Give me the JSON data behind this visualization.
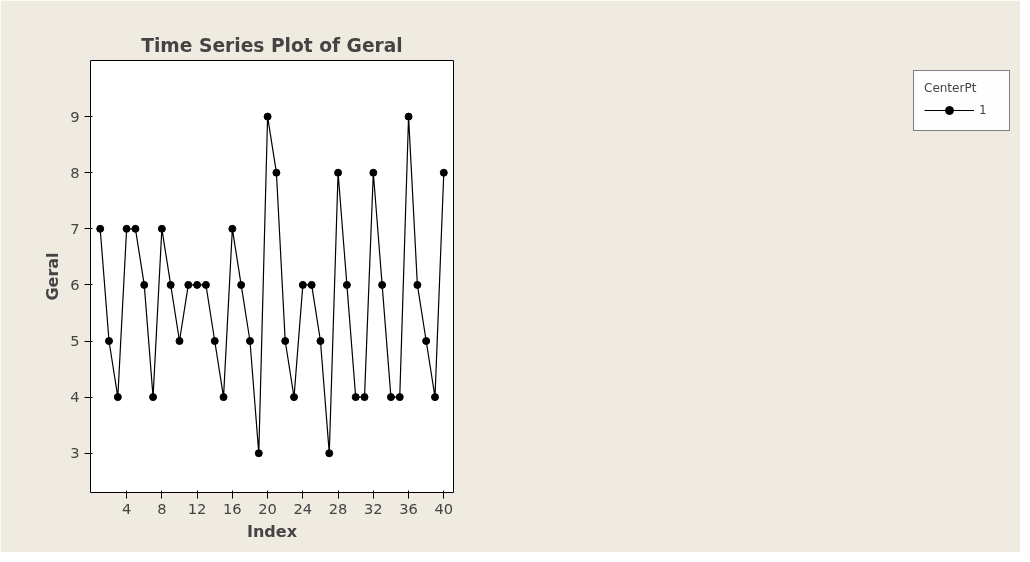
{
  "chart_data": {
    "type": "line",
    "title": "Time Series Plot of Geral",
    "xlabel": "Index",
    "ylabel": "Geral",
    "legend_title": "CenterPt",
    "x": [
      1,
      2,
      3,
      4,
      5,
      6,
      7,
      8,
      9,
      10,
      11,
      12,
      13,
      14,
      15,
      16,
      17,
      18,
      19,
      20,
      21,
      22,
      23,
      24,
      25,
      26,
      27,
      28,
      29,
      30,
      31,
      32,
      33,
      34,
      35,
      36,
      37,
      38,
      39,
      40
    ],
    "series": [
      {
        "name": "1",
        "color": "#000000",
        "values": [
          7,
          5,
          4,
          7,
          7,
          6,
          4,
          7,
          6,
          5,
          6,
          6,
          6,
          5,
          4,
          7,
          6,
          5,
          3,
          9,
          8,
          5,
          4,
          6,
          6,
          5,
          3,
          8,
          6,
          4,
          4,
          8,
          6,
          4,
          4,
          9,
          6,
          5,
          4,
          8
        ]
      }
    ],
    "xlim": [
      -0.1,
      41.1
    ],
    "ylim": [
      2.3,
      10.0
    ],
    "xticks": [
      4,
      8,
      12,
      16,
      20,
      24,
      28,
      32,
      36,
      40
    ],
    "yticks": [
      3,
      4,
      5,
      6,
      7,
      8,
      9
    ],
    "grid": false,
    "legend": "top right",
    "marker": "circle",
    "line_style": "solid"
  }
}
